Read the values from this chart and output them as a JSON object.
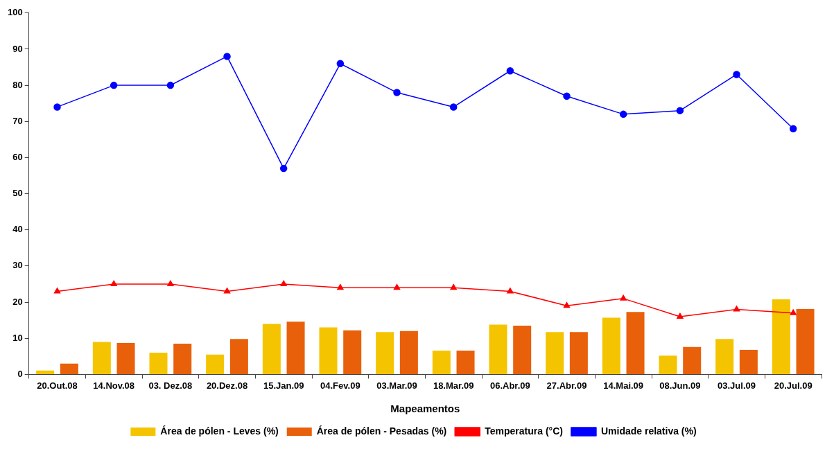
{
  "chart_data": {
    "type": "bar",
    "xlabel": "Mapeamentos",
    "categories": [
      "20.Out.08",
      "14.Nov.08",
      "03. Dez.08",
      "20.Dez.08",
      "15.Jan.09",
      "04.Fev.09",
      "03.Mar.09",
      "18.Mar.09",
      "06.Abr.09",
      "27.Abr.09",
      "14.Mai.09",
      "08.Jun.09",
      "03.Jul.09",
      "20.Jul.09"
    ],
    "series": [
      {
        "name": "Área de pólen - Leves (%)",
        "color": "#f5c400",
        "values": [
          1.1,
          9,
          6,
          5.5,
          14,
          13,
          11.7,
          6.6,
          13.8,
          11.7,
          15.7,
          5.2,
          9.8,
          20.8
        ]
      },
      {
        "name": "Área de pólen - Pesadas (%)",
        "color": "#e8600a",
        "values": [
          3,
          8.7,
          8.5,
          9.8,
          14.6,
          12.2,
          12,
          6.6,
          13.5,
          11.7,
          17.3,
          7.6,
          6.8,
          18.1
        ]
      },
      {
        "name": "Temperatura (°C)",
        "type": "line",
        "color": "#ff0000",
        "marker": "triangle",
        "values": [
          23,
          25,
          25,
          23,
          25,
          24,
          24,
          24,
          23,
          19,
          21,
          16,
          18,
          17
        ]
      },
      {
        "name": "Umidade relativa (%)",
        "type": "line",
        "color": "#0000ff",
        "marker": "circle",
        "values": [
          74,
          80,
          80,
          88,
          57,
          86,
          78,
          74,
          84,
          77,
          72,
          73,
          83,
          68
        ]
      }
    ],
    "ylim": [
      0,
      100
    ],
    "yticks": [
      0,
      10,
      20,
      30,
      40,
      50,
      60,
      70,
      80,
      90,
      100
    ],
    "grid": false,
    "legend": "bottom"
  }
}
